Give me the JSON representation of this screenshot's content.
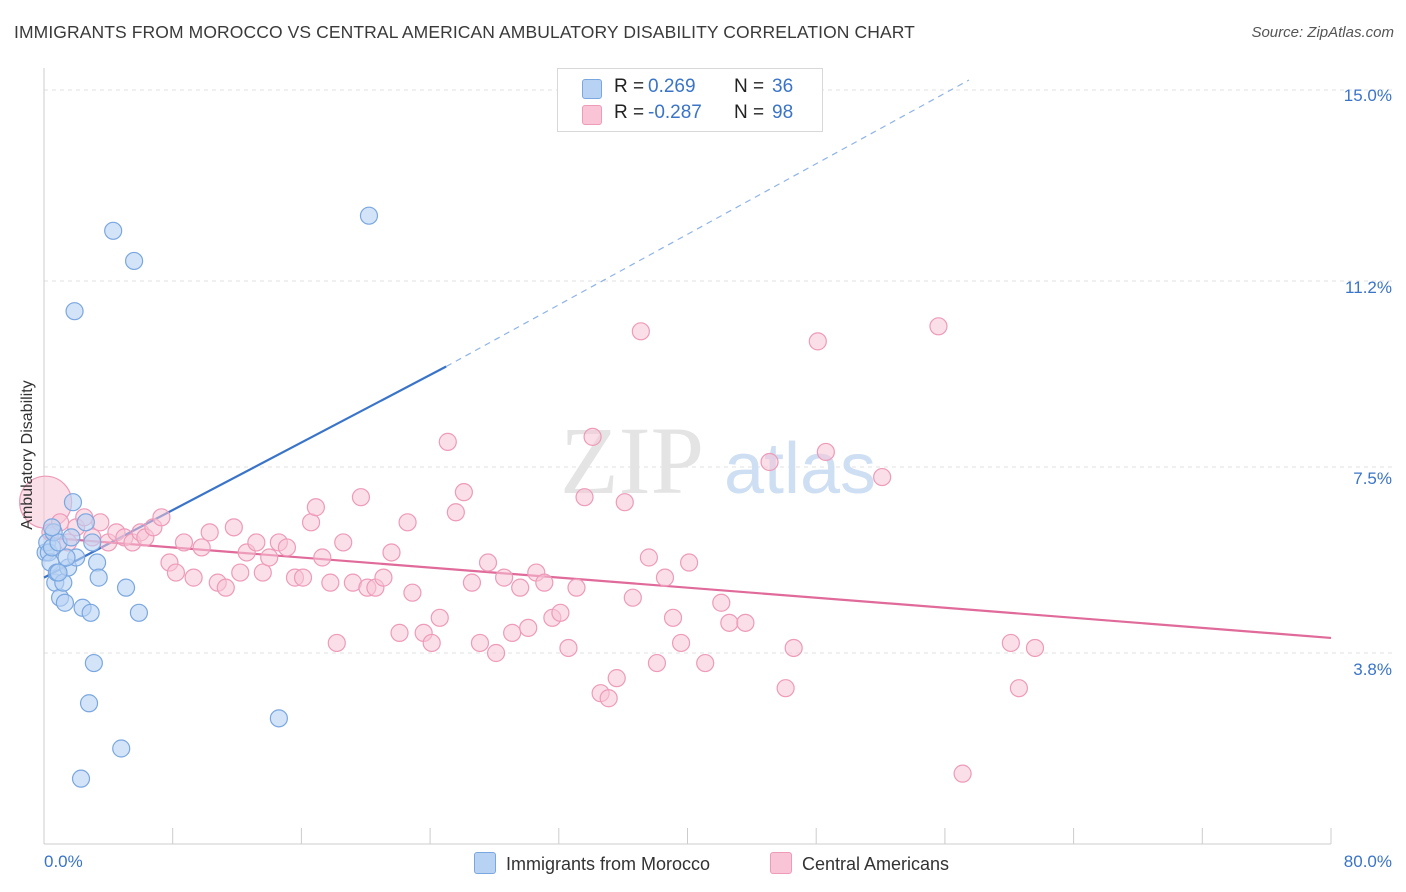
{
  "title": "IMMIGRANTS FROM MOROCCO VS CENTRAL AMERICAN AMBULATORY DISABILITY CORRELATION CHART",
  "source": "Source: ZipAtlas.com",
  "watermark": {
    "zip": "ZIP",
    "atlas": "atlas"
  },
  "colors": {
    "blue": "#3a74c8",
    "blue_fill": "#b8d2f3",
    "blue_stroke": "#7aa7e0",
    "pink": "#e06a9a",
    "pink_fill": "#f8c4d6",
    "pink_stroke": "#ee9ab9",
    "grid": "#e2e2e2",
    "axis": "#cccccc"
  },
  "legend_top": {
    "rows": [
      {
        "r_label": "R =",
        "r_value": "0.269",
        "n_label": "N =",
        "n_value": "36"
      },
      {
        "r_label": "R =",
        "r_value": "-0.287",
        "n_label": "N =",
        "n_value": "98"
      }
    ]
  },
  "chart_data": {
    "type": "scatter",
    "title": "IMMIGRANTS FROM MOROCCO VS CENTRAL AMERICAN AMBULATORY DISABILITY CORRELATION CHART",
    "xlabel": "",
    "ylabel": "Ambulatory Disability",
    "xlim": [
      0,
      80
    ],
    "ylim": [
      0,
      15.5
    ],
    "x_tick_labels": [
      "0.0%",
      "80.0%"
    ],
    "y_ticks": [
      3.8,
      7.5,
      11.2,
      15.0
    ],
    "y_tick_labels": [
      "3.8%",
      "7.5%",
      "11.2%",
      "15.0%"
    ],
    "series": [
      {
        "name": "Immigrants from Morocco",
        "color": "blue",
        "r": 0.269,
        "n": 36,
        "trend": {
          "x0": 0,
          "y0": 5.3,
          "x1": 25,
          "y1": 9.5,
          "dash_to_x": 57.5,
          "dash_to_y": 15.2
        },
        "points": [
          [
            0.1,
            5.8
          ],
          [
            0.2,
            6.0
          ],
          [
            0.3,
            5.8
          ],
          [
            0.4,
            5.6
          ],
          [
            0.5,
            5.9
          ],
          [
            0.6,
            6.2
          ],
          [
            0.7,
            5.2
          ],
          [
            0.8,
            5.4
          ],
          [
            0.9,
            6.0
          ],
          [
            1.0,
            4.9
          ],
          [
            1.2,
            5.2
          ],
          [
            1.3,
            4.8
          ],
          [
            1.5,
            5.5
          ],
          [
            1.7,
            6.1
          ],
          [
            1.8,
            6.8
          ],
          [
            2.0,
            5.7
          ],
          [
            1.9,
            10.6
          ],
          [
            2.4,
            4.7
          ],
          [
            2.6,
            6.4
          ],
          [
            2.8,
            2.8
          ],
          [
            2.9,
            4.6
          ],
          [
            3.0,
            6.0
          ],
          [
            3.1,
            3.6
          ],
          [
            3.3,
            5.6
          ],
          [
            3.4,
            5.3
          ],
          [
            4.3,
            12.2
          ],
          [
            4.8,
            1.9
          ],
          [
            5.1,
            5.1
          ],
          [
            5.6,
            11.6
          ],
          [
            5.9,
            4.6
          ],
          [
            2.3,
            1.3
          ],
          [
            14.6,
            2.5
          ],
          [
            20.2,
            12.5
          ],
          [
            0.5,
            6.3
          ],
          [
            1.4,
            5.7
          ],
          [
            0.9,
            5.4
          ]
        ]
      },
      {
        "name": "Central Americans",
        "color": "pink",
        "r": -0.287,
        "n": 98,
        "trend": {
          "x0": 0,
          "y0": 6.1,
          "x1": 80,
          "y1": 4.1
        },
        "points": [
          [
            0.1,
            6.8
          ],
          [
            0.4,
            6.2
          ],
          [
            1.0,
            6.4
          ],
          [
            1.5,
            6.0
          ],
          [
            2.0,
            6.3
          ],
          [
            2.5,
            6.5
          ],
          [
            3.0,
            6.1
          ],
          [
            3.5,
            6.4
          ],
          [
            4.0,
            6.0
          ],
          [
            4.5,
            6.2
          ],
          [
            5.0,
            6.1
          ],
          [
            5.5,
            6.0
          ],
          [
            6.0,
            6.2
          ],
          [
            6.3,
            6.1
          ],
          [
            6.8,
            6.3
          ],
          [
            7.3,
            6.5
          ],
          [
            7.8,
            5.6
          ],
          [
            8.2,
            5.4
          ],
          [
            8.7,
            6.0
          ],
          [
            9.3,
            5.3
          ],
          [
            9.8,
            5.9
          ],
          [
            10.3,
            6.2
          ],
          [
            10.8,
            5.2
          ],
          [
            11.3,
            5.1
          ],
          [
            11.8,
            6.3
          ],
          [
            12.2,
            5.4
          ],
          [
            12.6,
            5.8
          ],
          [
            13.2,
            6.0
          ],
          [
            13.6,
            5.4
          ],
          [
            14.0,
            5.7
          ],
          [
            14.6,
            6.0
          ],
          [
            15.1,
            5.9
          ],
          [
            15.6,
            5.3
          ],
          [
            16.1,
            5.3
          ],
          [
            16.6,
            6.4
          ],
          [
            16.9,
            6.7
          ],
          [
            17.3,
            5.7
          ],
          [
            17.8,
            5.2
          ],
          [
            18.2,
            4.0
          ],
          [
            18.6,
            6.0
          ],
          [
            19.2,
            5.2
          ],
          [
            19.7,
            6.9
          ],
          [
            20.1,
            5.1
          ],
          [
            20.6,
            5.1
          ],
          [
            21.1,
            5.3
          ],
          [
            21.6,
            5.8
          ],
          [
            22.1,
            4.2
          ],
          [
            22.6,
            6.4
          ],
          [
            22.9,
            5.0
          ],
          [
            23.6,
            4.2
          ],
          [
            24.1,
            4.0
          ],
          [
            24.6,
            4.5
          ],
          [
            25.1,
            8.0
          ],
          [
            25.6,
            6.6
          ],
          [
            26.1,
            7.0
          ],
          [
            26.6,
            5.2
          ],
          [
            27.1,
            4.0
          ],
          [
            27.6,
            5.6
          ],
          [
            28.1,
            3.8
          ],
          [
            28.6,
            5.3
          ],
          [
            29.1,
            4.2
          ],
          [
            29.6,
            5.1
          ],
          [
            30.1,
            4.3
          ],
          [
            30.6,
            5.4
          ],
          [
            31.1,
            5.2
          ],
          [
            31.6,
            4.5
          ],
          [
            32.1,
            4.6
          ],
          [
            32.6,
            3.9
          ],
          [
            33.1,
            5.1
          ],
          [
            33.6,
            6.9
          ],
          [
            34.1,
            8.1
          ],
          [
            34.6,
            3.0
          ],
          [
            35.1,
            2.9
          ],
          [
            35.6,
            3.3
          ],
          [
            36.1,
            6.8
          ],
          [
            36.6,
            4.9
          ],
          [
            37.1,
            10.2
          ],
          [
            37.6,
            5.7
          ],
          [
            38.1,
            3.6
          ],
          [
            38.6,
            5.3
          ],
          [
            39.1,
            4.5
          ],
          [
            39.6,
            4.0
          ],
          [
            40.1,
            5.6
          ],
          [
            41.1,
            3.6
          ],
          [
            42.1,
            4.8
          ],
          [
            42.6,
            4.4
          ],
          [
            43.6,
            4.4
          ],
          [
            45.1,
            7.6
          ],
          [
            46.1,
            3.1
          ],
          [
            46.6,
            3.9
          ],
          [
            48.1,
            10.0
          ],
          [
            48.6,
            7.8
          ],
          [
            52.1,
            7.3
          ],
          [
            55.6,
            10.3
          ],
          [
            57.1,
            1.4
          ],
          [
            60.1,
            4.0
          ],
          [
            60.6,
            3.1
          ],
          [
            61.6,
            3.9
          ]
        ]
      }
    ]
  },
  "legend_bottom": [
    "Immigrants from Morocco",
    "Central Americans"
  ]
}
